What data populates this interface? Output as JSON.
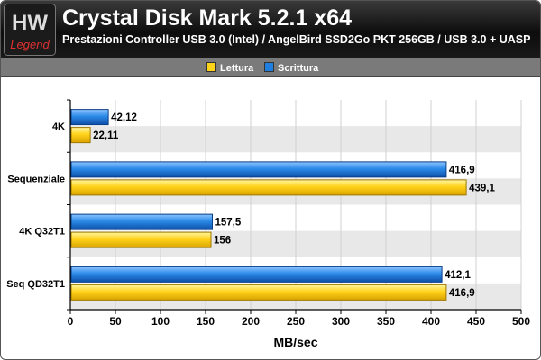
{
  "header": {
    "title": "Crystal Disk Mark 5.2.1 x64",
    "subtitle": "Prestazioni Controller USB 3.0 (Intel) / AngelBird SSD2Go PKT 256GB / USB 3.0 + UASP",
    "logo_text_top": "HW",
    "logo_text_bottom": "Legend"
  },
  "legend": {
    "items": [
      {
        "label": "Lettura",
        "color": "#ffd21a"
      },
      {
        "label": "Scrittura",
        "color": "#1e7fe0"
      }
    ]
  },
  "chart_data": {
    "type": "bar",
    "orientation": "horizontal",
    "categories": [
      "4K",
      "Sequenziale",
      "4K Q32T1",
      "Seq QD32T1"
    ],
    "series": [
      {
        "name": "Scrittura",
        "color": "#1e7fe0",
        "values": [
          42.12,
          416.9,
          157.5,
          412.1
        ],
        "labels": [
          "42,12",
          "416,9",
          "157,5",
          "412,1"
        ]
      },
      {
        "name": "Lettura",
        "color": "#ffd21a",
        "values": [
          22.11,
          439.1,
          156,
          416.9
        ],
        "labels": [
          "22,11",
          "439,1",
          "156",
          "416,9"
        ]
      }
    ],
    "xlabel": "MB/sec",
    "ylabel": "",
    "xlim": [
      0,
      500
    ],
    "xticks": [
      0,
      50,
      100,
      150,
      200,
      250,
      300,
      350,
      400,
      450,
      500
    ],
    "grid": true,
    "legend_position": "top"
  }
}
